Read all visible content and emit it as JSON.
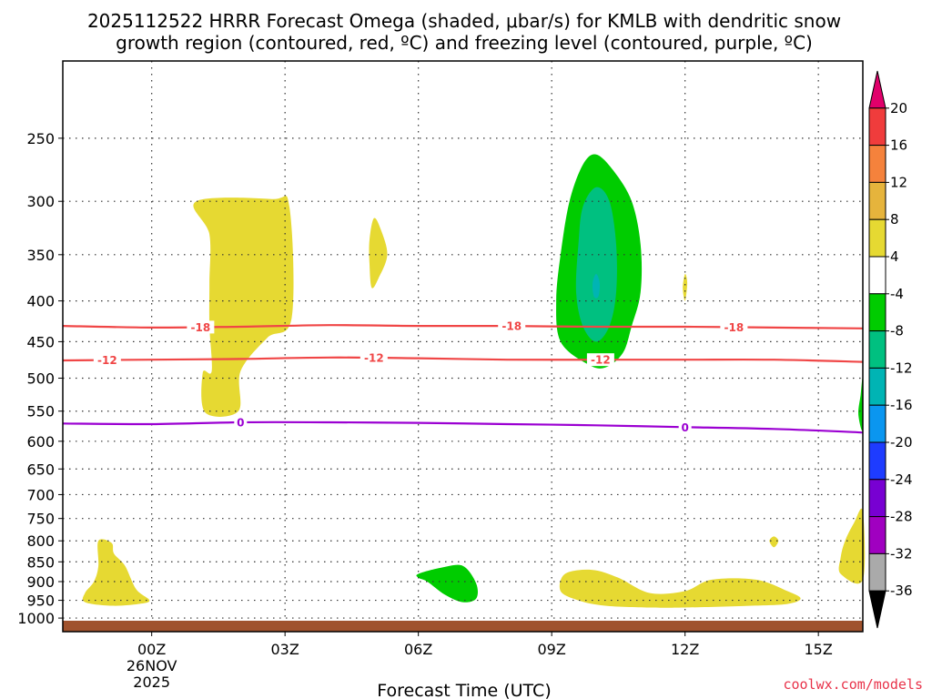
{
  "title_line1": "2025112522 HRRR Forecast Omega (shaded, μbar/s) for KMLB with dendritic snow",
  "title_line2": "growth region (contoured, red, ºC) and freezing level (contoured, purple, ºC)",
  "credit": "coolwx.com/models",
  "chart_data": {
    "type": "heatmap",
    "title": "2025112522 HRRR Forecast Omega (shaded, μbar/s) for KMLB with dendritic snow growth region (contoured, red, ºC) and freezing level (contoured, purple, ºC)",
    "xlabel": "Forecast Time (UTC)",
    "ylabel": "",
    "x_ticks": [
      {
        "hour": 0,
        "label": "00Z",
        "sub": [
          "26NOV",
          "2025"
        ]
      },
      {
        "hour": 3,
        "label": "03Z",
        "sub": []
      },
      {
        "hour": 6,
        "label": "06Z",
        "sub": []
      },
      {
        "hour": 9,
        "label": "09Z",
        "sub": []
      },
      {
        "hour": 12,
        "label": "12Z",
        "sub": []
      },
      {
        "hour": 15,
        "label": "15Z",
        "sub": []
      }
    ],
    "xlim": [
      -2,
      16
    ],
    "y_scale": "log-pressure",
    "ylim": [
      1040,
      200
    ],
    "y_ticks": [
      250,
      300,
      350,
      400,
      450,
      500,
      550,
      600,
      650,
      700,
      750,
      800,
      850,
      900,
      950,
      1000
    ],
    "grid": true,
    "ground_color": "#a0522d",
    "colorbar": {
      "label_values": [
        20,
        16,
        12,
        8,
        4,
        -4,
        -8,
        -12,
        -16,
        -20,
        -24,
        -28,
        -32,
        -36
      ],
      "bins": [
        {
          "color": "#e0006b",
          "shape": "arrow-up"
        },
        {
          "color": "#f03c3c"
        },
        {
          "color": "#f5823c"
        },
        {
          "color": "#e6b43c"
        },
        {
          "color": "#e6d932"
        },
        {
          "color": "#ffffff"
        },
        {
          "color": "#00cc00"
        },
        {
          "color": "#00c080"
        },
        {
          "color": "#00b4b4"
        },
        {
          "color": "#0a96f0"
        },
        {
          "color": "#1e3cff"
        },
        {
          "color": "#7800d2"
        },
        {
          "color": "#a000c0"
        },
        {
          "color": "#aaaaaa"
        },
        {
          "color": "#000000",
          "shape": "arrow-down"
        }
      ]
    },
    "omega_regions": [
      {
        "color": "#e6d932",
        "points": [
          [
            1.0,
            300
          ],
          [
            2.7,
            298
          ],
          [
            3.1,
            305
          ],
          [
            3.15,
            420
          ],
          [
            2.6,
            445
          ],
          [
            2.0,
            490
          ],
          [
            1.95,
            550
          ],
          [
            1.2,
            552
          ],
          [
            1.15,
            492
          ],
          [
            1.35,
            490
          ],
          [
            1.3,
            430
          ],
          [
            1.3,
            380
          ],
          [
            1.3,
            330
          ]
        ]
      },
      {
        "color": "#e6d932",
        "points": [
          [
            5.0,
            315
          ],
          [
            5.15,
            325
          ],
          [
            5.3,
            350
          ],
          [
            5.1,
            375
          ],
          [
            4.95,
            385
          ],
          [
            4.9,
            360
          ],
          [
            4.9,
            335
          ]
        ]
      },
      {
        "color": "#e6d932",
        "points": [
          [
            14.0,
            790
          ],
          [
            14.1,
            800
          ],
          [
            14.0,
            815
          ],
          [
            13.9,
            800
          ]
        ]
      },
      {
        "color": "#e6d932",
        "points": [
          [
            12.0,
            370
          ],
          [
            12.05,
            380
          ],
          [
            12.0,
            400
          ],
          [
            11.95,
            385
          ]
        ]
      },
      {
        "color": "#e6d932",
        "points": [
          [
            -1.2,
            800
          ],
          [
            -0.9,
            805
          ],
          [
            -0.85,
            830
          ],
          [
            -0.6,
            860
          ],
          [
            -0.35,
            920
          ],
          [
            -0.05,
            950
          ],
          [
            -0.3,
            960
          ],
          [
            -0.9,
            965
          ],
          [
            -1.5,
            955
          ],
          [
            -1.5,
            930
          ],
          [
            -1.3,
            900
          ],
          [
            -1.2,
            860
          ]
        ]
      },
      {
        "color": "#e6d932",
        "points": [
          [
            9.3,
            880
          ],
          [
            9.9,
            870
          ],
          [
            10.5,
            890
          ],
          [
            11.2,
            930
          ],
          [
            12.0,
            925
          ],
          [
            12.6,
            895
          ],
          [
            13.6,
            895
          ],
          [
            14.3,
            925
          ],
          [
            14.6,
            945
          ],
          [
            14.3,
            960
          ],
          [
            13.5,
            965
          ],
          [
            12.0,
            970
          ],
          [
            11.2,
            970
          ],
          [
            10.2,
            965
          ],
          [
            9.6,
            950
          ],
          [
            9.2,
            925
          ]
        ]
      },
      {
        "color": "#e6d932",
        "points": [
          [
            16.0,
            735
          ],
          [
            15.8,
            760
          ],
          [
            15.6,
            800
          ],
          [
            15.5,
            840
          ],
          [
            15.5,
            880
          ],
          [
            16.0,
            895
          ]
        ]
      },
      {
        "color": "#00cc00",
        "points": [
          [
            6.0,
            880
          ],
          [
            6.5,
            865
          ],
          [
            7.0,
            860
          ],
          [
            7.3,
            905
          ],
          [
            7.3,
            945
          ],
          [
            7.0,
            955
          ],
          [
            6.6,
            935
          ],
          [
            6.2,
            900
          ],
          [
            6.0,
            890
          ]
        ]
      },
      {
        "color": "#00cc00",
        "points": [
          [
            16.0,
            500
          ],
          [
            15.95,
            525
          ],
          [
            15.9,
            555
          ],
          [
            16.0,
            580
          ]
        ]
      },
      {
        "color": "#00cc00",
        "points": [
          [
            10.0,
            262
          ],
          [
            10.4,
            275
          ],
          [
            10.8,
            300
          ],
          [
            11.0,
            340
          ],
          [
            11.0,
            390
          ],
          [
            10.8,
            430
          ],
          [
            10.6,
            465
          ],
          [
            10.2,
            485
          ],
          [
            9.8,
            480
          ],
          [
            9.2,
            450
          ],
          [
            9.1,
            400
          ],
          [
            9.2,
            350
          ],
          [
            9.4,
            300
          ],
          [
            9.7,
            270
          ]
        ]
      },
      {
        "color": "#00c080",
        "points": [
          [
            10.0,
            288
          ],
          [
            10.3,
            300
          ],
          [
            10.45,
            340
          ],
          [
            10.45,
            390
          ],
          [
            10.3,
            430
          ],
          [
            10.0,
            450
          ],
          [
            9.7,
            430
          ],
          [
            9.55,
            390
          ],
          [
            9.6,
            340
          ],
          [
            9.7,
            305
          ]
        ]
      },
      {
        "color": "#00b4b4",
        "points": [
          [
            10.0,
            370
          ],
          [
            10.08,
            380
          ],
          [
            10.05,
            395
          ],
          [
            9.95,
            395
          ],
          [
            9.92,
            380
          ]
        ]
      }
    ],
    "contours": [
      {
        "name": "-18",
        "color": "#f04646",
        "labels_at": [
          1.1,
          8.1,
          13.1
        ],
        "points": [
          [
            -2,
            430
          ],
          [
            0,
            432
          ],
          [
            2,
            431
          ],
          [
            4,
            429
          ],
          [
            6,
            430
          ],
          [
            8,
            430
          ],
          [
            10,
            431
          ],
          [
            12,
            431
          ],
          [
            14,
            432
          ],
          [
            16,
            433
          ]
        ]
      },
      {
        "name": "-12",
        "color": "#f04646",
        "labels_at": [
          -1.0,
          5.0,
          10.1
        ],
        "points": [
          [
            -2,
            475
          ],
          [
            0,
            474
          ],
          [
            2,
            473
          ],
          [
            4,
            471
          ],
          [
            6,
            472
          ],
          [
            8,
            474
          ],
          [
            10,
            474
          ],
          [
            12,
            474
          ],
          [
            14,
            474
          ],
          [
            16,
            477
          ]
        ]
      },
      {
        "name": "0",
        "color": "#9b00d2",
        "labels_at": [
          2.0,
          12.0
        ],
        "points": [
          [
            -2,
            570
          ],
          [
            0,
            571
          ],
          [
            2,
            568
          ],
          [
            4,
            568
          ],
          [
            6,
            569
          ],
          [
            8,
            571
          ],
          [
            10,
            573
          ],
          [
            12,
            576
          ],
          [
            14,
            579
          ],
          [
            16,
            585
          ]
        ]
      }
    ]
  }
}
